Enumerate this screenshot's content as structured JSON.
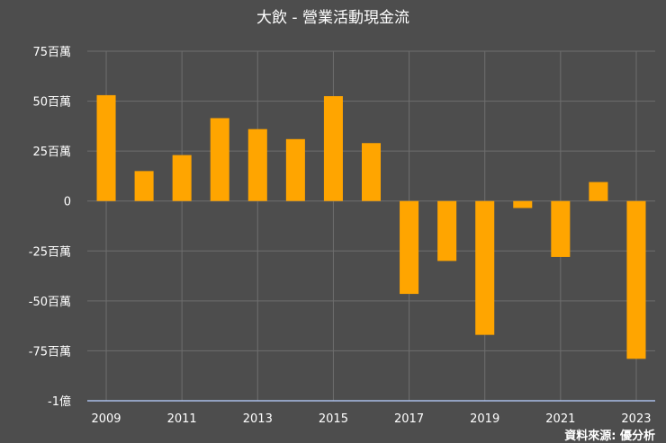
{
  "chart_data": {
    "type": "bar",
    "title": "大飲 - 營業活動現金流",
    "source": "資料來源: 優分析",
    "categories": [
      "2009",
      "2010",
      "2011",
      "2012",
      "2013",
      "2014",
      "2015",
      "2016",
      "2017",
      "2018",
      "2019",
      "2020",
      "2021",
      "2022",
      "2023"
    ],
    "values": [
      53,
      15,
      23,
      41.5,
      36,
      31,
      52.5,
      29,
      -46.5,
      -30,
      -67,
      -3.5,
      -28,
      9.5,
      -79
    ],
    "unit": "百萬",
    "ylim": [
      -100,
      75
    ],
    "yticks": [
      75,
      50,
      25,
      0,
      -25,
      -50,
      -75,
      -100
    ],
    "ytick_labels": [
      "75百萬",
      "50百萬",
      "25百萬",
      "0",
      "-25百萬",
      "-50百萬",
      "-75百萬",
      "-1億"
    ],
    "xtick_labels": [
      "2009",
      "2011",
      "2013",
      "2015",
      "2017",
      "2019",
      "2021",
      "2023"
    ],
    "xlabel": "",
    "ylabel": "",
    "grid": true,
    "legend": false,
    "colors": {
      "bar": "#ffa500",
      "background": "#4d4d4d",
      "grid": "#6e6e6e",
      "axis": "#aabde8",
      "text": "#ffffff"
    }
  }
}
